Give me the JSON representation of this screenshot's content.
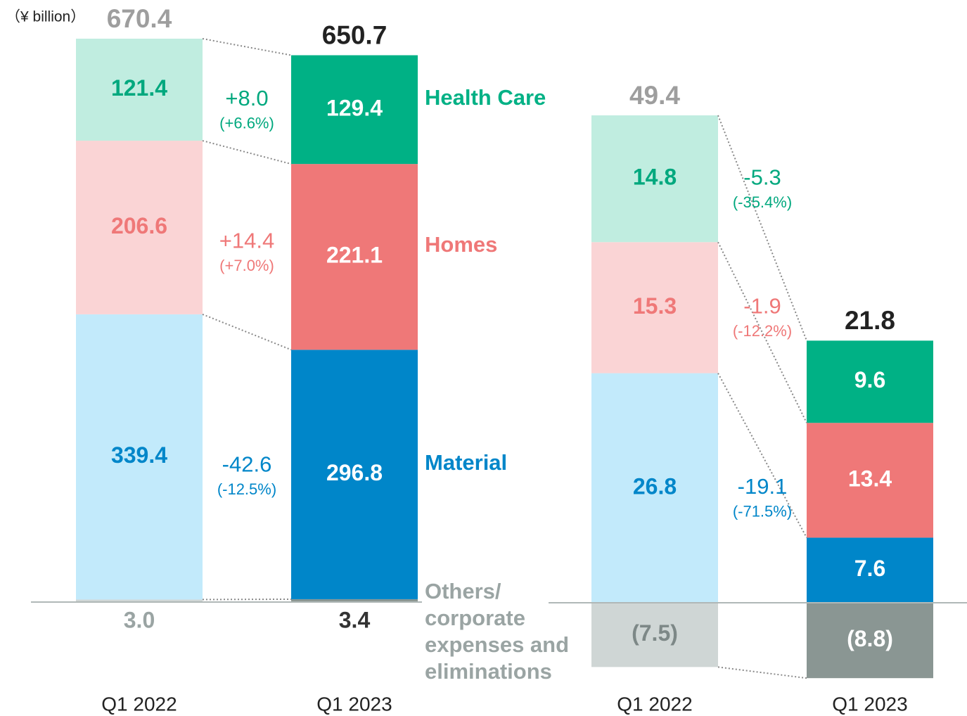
{
  "chart_data": [
    {
      "type": "bar",
      "stacked": true,
      "unit": "（¥ billion）",
      "categories": [
        "Q1 2022",
        "Q1 2023"
      ],
      "totals": [
        670.4,
        650.7
      ],
      "total_colors": [
        "#9e9e9e",
        "#222222"
      ],
      "series": [
        {
          "name": "Health Care",
          "values": [
            121.4,
            129.4
          ],
          "colors": [
            "#c0ede0",
            "#00b185"
          ],
          "label_colors": [
            "#00a87e",
            "#ffffff"
          ],
          "change": 8.0,
          "change_label": "+8.0",
          "change_pct": 6.6,
          "change_pct_label": "(+6.6%)"
        },
        {
          "name": "Homes",
          "values": [
            206.6,
            221.1
          ],
          "colors": [
            "#fad4d5",
            "#ef7878"
          ],
          "label_colors": [
            "#ef7878",
            "#ffffff"
          ],
          "change": 14.4,
          "change_label": "+14.4",
          "change_pct": 7.0,
          "change_pct_label": "(+7.0%)"
        },
        {
          "name": "Material",
          "values": [
            339.4,
            296.8
          ],
          "colors": [
            "#c2eafb",
            "#0086c9"
          ],
          "label_colors": [
            "#0086c9",
            "#ffffff"
          ],
          "change": -42.6,
          "change_pct": -12.5,
          "change_pct_label": "(-12.5%)"
        },
        {
          "name": "Others/ corporate expenses and eliminations",
          "values": [
            3.0,
            3.4
          ],
          "value_labels": [
            "3.0",
            "3.4"
          ],
          "colors": [
            "#cfd6d5",
            "#8a9693"
          ],
          "label_colors": [
            "#9aa4a3",
            "#333333"
          ]
        }
      ]
    },
    {
      "type": "bar",
      "stacked": true,
      "categories": [
        "Q1 2022",
        "Q1 2023"
      ],
      "totals": [
        49.4,
        21.8
      ],
      "total_colors": [
        "#9e9e9e",
        "#222222"
      ],
      "series": [
        {
          "values": [
            14.8,
            9.6
          ],
          "colors": [
            "#c0ede0",
            "#00b185"
          ],
          "label_colors": [
            "#00a87e",
            "#ffffff"
          ],
          "change": -5.3,
          "change_pct": -35.4,
          "change_pct_label": "(-35.4%)"
        },
        {
          "values": [
            15.3,
            13.4
          ],
          "colors": [
            "#fad4d5",
            "#ef7878"
          ],
          "label_colors": [
            "#ef7878",
            "#ffffff"
          ],
          "change": -1.9,
          "change_pct": -12.2,
          "change_pct_label": "(-12.2%)"
        },
        {
          "values": [
            26.8,
            7.6
          ],
          "colors": [
            "#c2eafb",
            "#0086c9"
          ],
          "label_colors": [
            "#0086c9",
            "#ffffff"
          ],
          "change": -19.1,
          "change_pct": -71.5,
          "change_pct_label": "(-71.5%)"
        },
        {
          "values": [
            -7.5,
            -8.8
          ],
          "value_labels": [
            "(7.5)",
            "(8.8)"
          ],
          "colors": [
            "#cfd6d5",
            "#8a9693"
          ],
          "label_colors": [
            "#7d8887",
            "#ffffff"
          ]
        }
      ]
    }
  ]
}
